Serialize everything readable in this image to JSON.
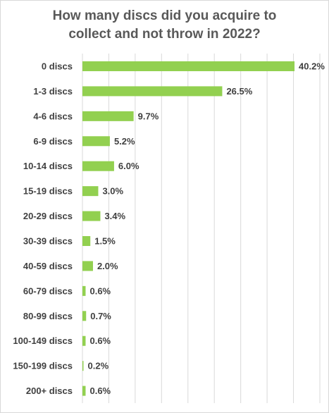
{
  "chart_data": {
    "type": "bar",
    "orientation": "horizontal",
    "title_lines": [
      "How many discs did you acquire to",
      "collect and not throw in 2022?"
    ],
    "categories": [
      "0 discs",
      "1-3 discs",
      "4-6 discs",
      "6-9 discs",
      "10-14 discs",
      "15-19 discs",
      "20-29 discs",
      "30-39 discs",
      "40-59 discs",
      "60-79 discs",
      "80-99 discs",
      "100-149 discs",
      "150-199 discs",
      "200+ discs"
    ],
    "values": [
      40.2,
      26.5,
      9.7,
      5.2,
      6.0,
      3.0,
      3.4,
      1.5,
      2.0,
      0.6,
      0.7,
      0.6,
      0.2,
      0.6
    ],
    "data_labels": [
      "40.2%",
      "26.5%",
      "9.7%",
      "5.2%",
      "6.0%",
      "3.0%",
      "3.4%",
      "1.5%",
      "2.0%",
      "0.6%",
      "0.7%",
      "0.6%",
      "0.2%",
      "0.6%"
    ],
    "xlim": [
      0,
      45
    ],
    "vertical_gridlines": true,
    "colors": {
      "bar": "#92d050",
      "gridline": "#d9d9d9",
      "text": "#404040",
      "title": "#595959"
    }
  }
}
